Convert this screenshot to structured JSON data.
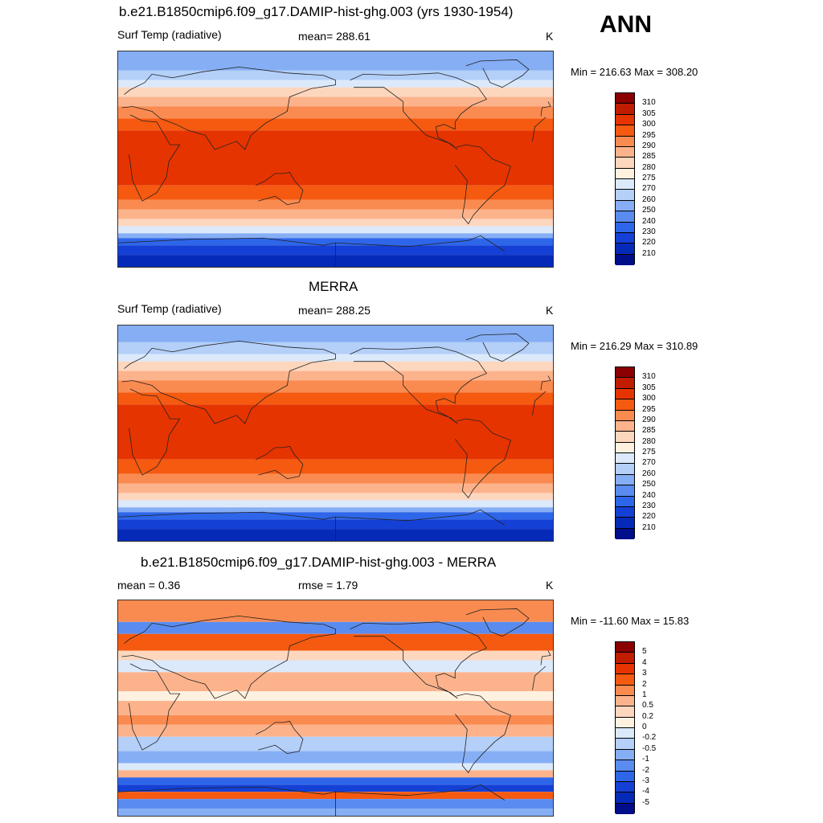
{
  "season": "ANN",
  "panels": [
    {
      "id": "model",
      "title": "b.e21.B1850cmip6.f09_g17.DAMIP-hist-ghg.003 (yrs 1930-1954)",
      "left_label": "Surf Temp (radiative)",
      "center_label": "mean= 288.61",
      "units": "K",
      "minmax": "Min = 216.63 Max = 308.20",
      "colorbar": {
        "ticks": [
          "310",
          "305",
          "300",
          "295",
          "290",
          "285",
          "280",
          "275",
          "270",
          "260",
          "250",
          "240",
          "230",
          "220",
          "210"
        ],
        "colors": [
          "#8b0000",
          "#c01c00",
          "#e63400",
          "#f55a10",
          "#fa8b50",
          "#fcb38c",
          "#fdd6be",
          "#fff1e0",
          "#dbe9fb",
          "#b4cff8",
          "#85aef4",
          "#5a8cf0",
          "#2e66ea",
          "#1540d6",
          "#062ab8",
          "#000e8a"
        ]
      },
      "bands": [
        {
          "lat": 90,
          "color": "#85aef4"
        },
        {
          "lat": 74,
          "color": "#b4cff8"
        },
        {
          "lat": 66,
          "color": "#dbe9fb"
        },
        {
          "lat": 60,
          "color": "#fdd6be"
        },
        {
          "lat": 52,
          "color": "#fcb38c"
        },
        {
          "lat": 44,
          "color": "#fa8b50"
        },
        {
          "lat": 34,
          "color": "#f55a10"
        },
        {
          "lat": 24,
          "color": "#e63400"
        },
        {
          "lat": -22,
          "color": "#f55a10"
        },
        {
          "lat": -34,
          "color": "#fa8b50"
        },
        {
          "lat": -42,
          "color": "#fcb38c"
        },
        {
          "lat": -50,
          "color": "#fdd6be"
        },
        {
          "lat": -56,
          "color": "#dbe9fb"
        },
        {
          "lat": -62,
          "color": "#85aef4"
        },
        {
          "lat": -66,
          "color": "#2e66ea"
        },
        {
          "lat": -72,
          "color": "#1540d6"
        },
        {
          "lat": -80,
          "color": "#062ab8"
        }
      ]
    },
    {
      "id": "obs",
      "title": "MERRA",
      "left_label": "Surf Temp (radiative)",
      "center_label": "mean= 288.25",
      "units": "K",
      "minmax": "Min = 216.29 Max = 310.89",
      "colorbar": {
        "ticks": [
          "310",
          "305",
          "300",
          "295",
          "290",
          "285",
          "280",
          "275",
          "270",
          "260",
          "250",
          "240",
          "230",
          "220",
          "210"
        ],
        "colors": [
          "#8b0000",
          "#c01c00",
          "#e63400",
          "#f55a10",
          "#fa8b50",
          "#fcb38c",
          "#fdd6be",
          "#fff1e0",
          "#dbe9fb",
          "#b4cff8",
          "#85aef4",
          "#5a8cf0",
          "#2e66ea",
          "#1540d6",
          "#062ab8",
          "#000e8a"
        ]
      },
      "bands": [
        {
          "lat": 90,
          "color": "#85aef4"
        },
        {
          "lat": 76,
          "color": "#b4cff8"
        },
        {
          "lat": 66,
          "color": "#dbe9fb"
        },
        {
          "lat": 60,
          "color": "#fdd6be"
        },
        {
          "lat": 52,
          "color": "#fcb38c"
        },
        {
          "lat": 44,
          "color": "#fa8b50"
        },
        {
          "lat": 34,
          "color": "#f55a10"
        },
        {
          "lat": 24,
          "color": "#e63400"
        },
        {
          "lat": -22,
          "color": "#f55a10"
        },
        {
          "lat": -34,
          "color": "#fa8b50"
        },
        {
          "lat": -42,
          "color": "#fcb38c"
        },
        {
          "lat": -50,
          "color": "#fdd6be"
        },
        {
          "lat": -56,
          "color": "#dbe9fb"
        },
        {
          "lat": -62,
          "color": "#85aef4"
        },
        {
          "lat": -66,
          "color": "#2e66ea"
        },
        {
          "lat": -72,
          "color": "#1540d6"
        },
        {
          "lat": -80,
          "color": "#062ab8"
        }
      ]
    },
    {
      "id": "diff",
      "title": "b.e21.B1850cmip6.f09_g17.DAMIP-hist-ghg.003 - MERRA",
      "left_label": "mean =   0.36",
      "center_label": "rmse =   1.79",
      "units": "K",
      "minmax": "Min = -11.60 Max =  15.83",
      "colorbar": {
        "ticks": [
          "5",
          "4",
          "3",
          "2",
          "1",
          "0.5",
          "0.2",
          "0",
          "-0.2",
          "-0.5",
          "-1",
          "-2",
          "-3",
          "-4",
          "-5"
        ],
        "colors": [
          "#8b0000",
          "#c01c00",
          "#e63400",
          "#f55a10",
          "#fa8b50",
          "#fcb38c",
          "#fdd6be",
          "#fff1e0",
          "#dbe9fb",
          "#b4cff8",
          "#85aef4",
          "#5a8cf0",
          "#2e66ea",
          "#1540d6",
          "#062ab8",
          "#000e8a"
        ]
      },
      "bands": [
        {
          "lat": 90,
          "color": "#fa8b50"
        },
        {
          "lat": 72,
          "color": "#5a8cf0"
        },
        {
          "lat": 62,
          "color": "#f55a10"
        },
        {
          "lat": 48,
          "color": "#fdd6be"
        },
        {
          "lat": 40,
          "color": "#dbe9fb"
        },
        {
          "lat": 30,
          "color": "#fcb38c"
        },
        {
          "lat": 14,
          "color": "#fff1e0"
        },
        {
          "lat": 6,
          "color": "#fcb38c"
        },
        {
          "lat": -6,
          "color": "#fa8b50"
        },
        {
          "lat": -14,
          "color": "#fcb38c"
        },
        {
          "lat": -24,
          "color": "#b4cff8"
        },
        {
          "lat": -36,
          "color": "#85aef4"
        },
        {
          "lat": -46,
          "color": "#dbe9fb"
        },
        {
          "lat": -52,
          "color": "#fcb38c"
        },
        {
          "lat": -58,
          "color": "#2e66ea"
        },
        {
          "lat": -64,
          "color": "#1540d6"
        },
        {
          "lat": -70,
          "color": "#f55a10"
        },
        {
          "lat": -76,
          "color": "#5a8cf0"
        },
        {
          "lat": -84,
          "color": "#85aef4"
        }
      ]
    }
  ]
}
